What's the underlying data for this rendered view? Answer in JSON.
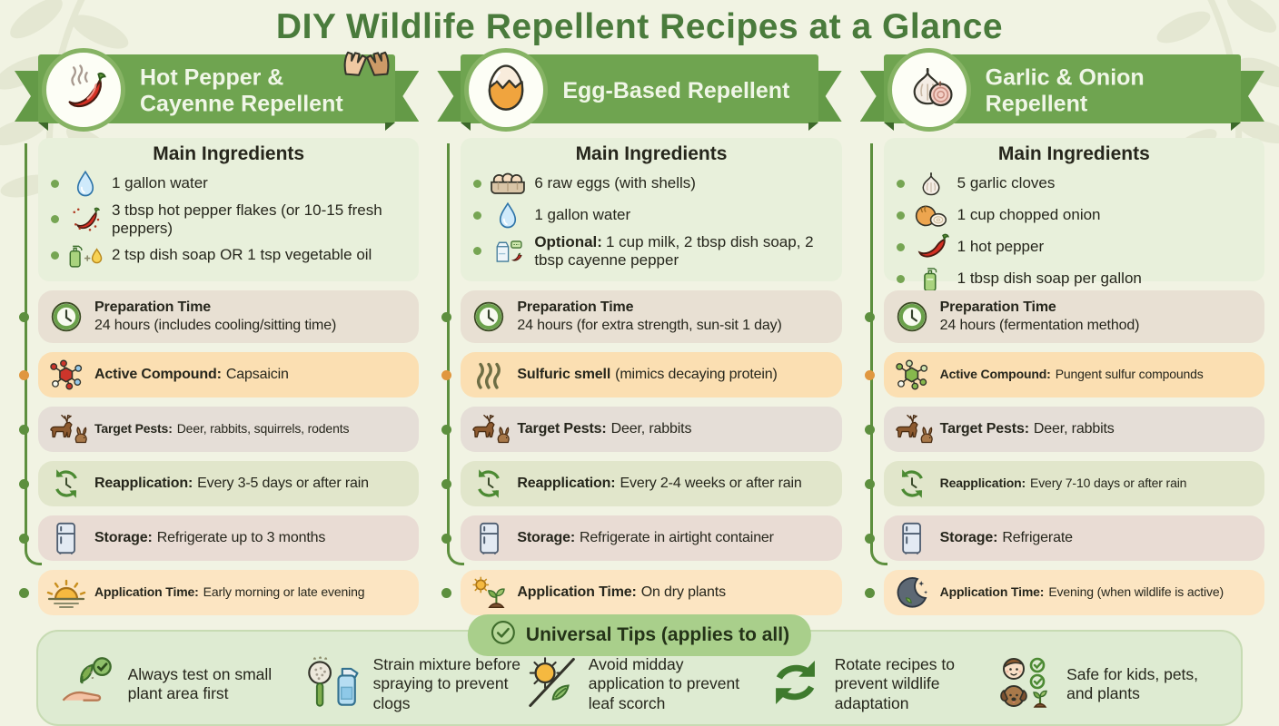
{
  "header": {
    "title": "DIY Wildlife Repellent Recipes at a Glance"
  },
  "colors": {
    "ribbon_green": "#6fa450",
    "title_green": "#4a7b3c",
    "connector_green": "#5d8f3e",
    "highlight_orange": "#fbdfb2",
    "tips_panel_green": "#deebd2",
    "background_cream": "#f1f3e3"
  },
  "columns": [
    {
      "id": "hot-pepper",
      "badge_icon": "chili-steam-icon",
      "extra_icon": "gloves-icon",
      "title": "Hot Pepper & Cayenne Repellent",
      "ingredients_title": "Main Ingredients",
      "ingredients": [
        {
          "icon": "water-drop-icon",
          "text": "1 gallon water"
        },
        {
          "icon": "pepper-flakes-icon",
          "text": "3 tbsp hot pepper flakes (or 10-15 fresh peppers)"
        },
        {
          "icon": "soap-oil-icon",
          "text": "2 tsp dish soap OR 1 tsp vegetable oil"
        }
      ],
      "facts": [
        {
          "icon": "clock-icon",
          "label": "Preparation Time",
          "value": "24 hours (includes cooling/sitting time)"
        },
        {
          "icon": "molecule-red-icon",
          "label": "Active Compound:",
          "value": "Capsaicin"
        },
        {
          "icon": "deer-rabbit-icon",
          "label": "Target Pests:",
          "value": "Deer, rabbits, squirrels, rodents"
        },
        {
          "icon": "cycle-clock-icon",
          "label": "Reapplication:",
          "value": "Every 3-5 days or after rain"
        },
        {
          "icon": "fridge-icon",
          "label": "Storage:",
          "value": "Refrigerate up to 3 months"
        },
        {
          "icon": "sunrise-icon",
          "label": "Application Time:",
          "value": "Early morning or late evening"
        }
      ]
    },
    {
      "id": "egg-based",
      "badge_icon": "egg-cracked-icon",
      "title": "Egg-Based Repellent",
      "ingredients_title": "Main Ingredients",
      "ingredients": [
        {
          "icon": "egg-carton-icon",
          "text": "6 raw eggs (with shells)"
        },
        {
          "icon": "water-drop-icon",
          "text": "1 gallon water"
        },
        {
          "icon": "milk-soap-pepper-icon",
          "prefix": "Optional:",
          "text": "1 cup milk, 2 tbsp dish soap, 2 tbsp cayenne pepper"
        }
      ],
      "facts": [
        {
          "icon": "clock-icon",
          "label": "Preparation Time",
          "value": "24 hours (for extra strength, sun-sit 1 day)"
        },
        {
          "icon": "steam-icon",
          "label": "Sulfuric smell",
          "value": "(mimics decaying protein)"
        },
        {
          "icon": "deer-rabbit-icon",
          "label": "Target Pests:",
          "value": "Deer, rabbits"
        },
        {
          "icon": "cycle-clock-icon",
          "label": "Reapplication:",
          "value": "Every 2-4 weeks or after rain"
        },
        {
          "icon": "fridge-icon",
          "label": "Storage:",
          "value": "Refrigerate in airtight container"
        },
        {
          "icon": "sun-plant-icon",
          "label": "Application Time:",
          "value": "On dry plants"
        }
      ]
    },
    {
      "id": "garlic-onion",
      "badge_icon": "garlic-onion-icon",
      "title": "Garlic & Onion Repellent",
      "ingredients_title": "Main Ingredients",
      "ingredients": [
        {
          "icon": "garlic-icon",
          "text": "5 garlic cloves"
        },
        {
          "icon": "onion-icon",
          "text": "1 cup chopped onion"
        },
        {
          "icon": "chili-icon",
          "text": "1 hot pepper"
        },
        {
          "icon": "soap-bottle-icon",
          "text": "1 tbsp dish soap per gallon"
        }
      ],
      "facts": [
        {
          "icon": "clock-icon",
          "label": "Preparation Time",
          "value": "24 hours (fermentation method)"
        },
        {
          "icon": "molecule-green-icon",
          "label": "Active Compound:",
          "value": "Pungent sulfur compounds"
        },
        {
          "icon": "deer-rabbit-icon",
          "label": "Target Pests:",
          "value": "Deer, rabbits"
        },
        {
          "icon": "cycle-clock-icon",
          "label": "Reapplication:",
          "value": "Every 7-10 days or after rain"
        },
        {
          "icon": "fridge-icon",
          "label": "Storage:",
          "value": "Refrigerate"
        },
        {
          "icon": "moon-icon",
          "label": "Application Time:",
          "value": "Evening (when wildlife is active)"
        }
      ]
    }
  ],
  "universal_tips": {
    "heading": "Universal Tips (applies to all)",
    "heading_icon": "check-circle-icon",
    "tips": [
      {
        "icon": "hand-plant-icon",
        "text": "Always test on small plant area first"
      },
      {
        "icon": "strainer-spray-icon",
        "text": "Strain mixture before spraying to prevent clogs"
      },
      {
        "icon": "sun-leaf-slash-icon",
        "text": "Avoid midday application to prevent leaf scorch"
      },
      {
        "icon": "rotate-arrows-icon",
        "text": "Rotate recipes to prevent wildlife adaptation"
      },
      {
        "icon": "kid-dog-plant-icon",
        "text": "Safe for kids, pets, and plants"
      }
    ]
  }
}
